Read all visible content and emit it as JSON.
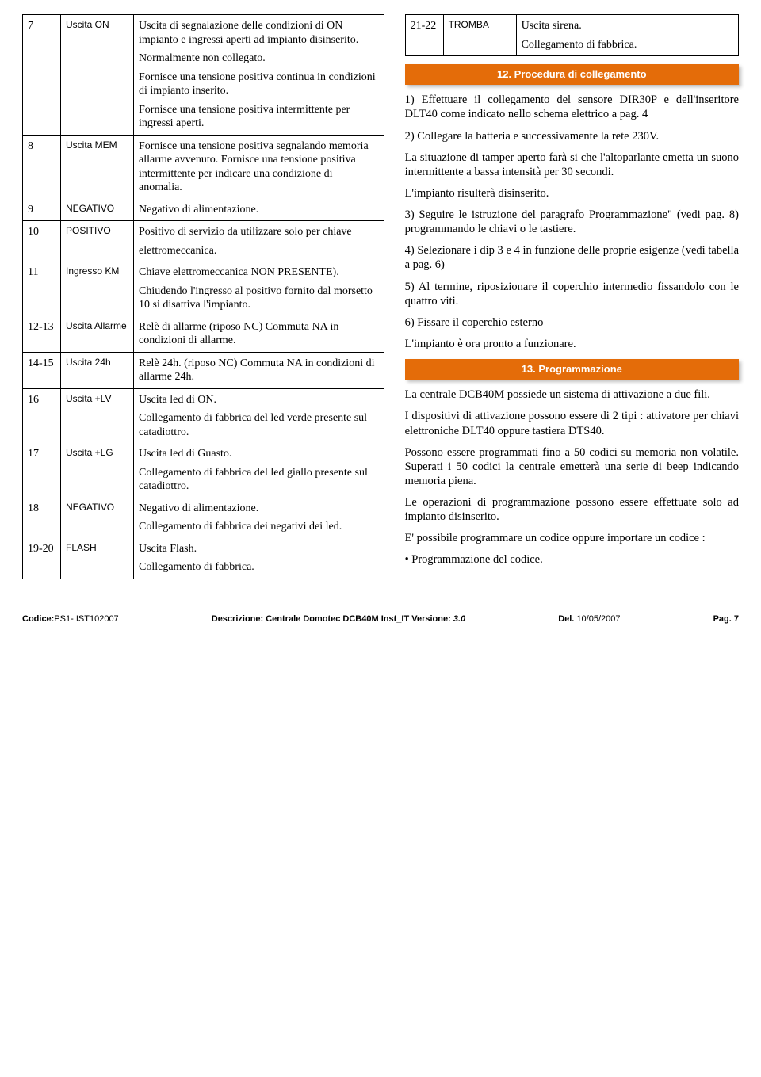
{
  "left_table": [
    {
      "n": "7",
      "name": "Uscita ON",
      "desc": [
        "Uscita di segnalazione delle condizioni di ON impianto e ingressi aperti ad impianto disinserito.",
        "Normalmente non collegato.",
        "Fornisce una tensione positiva continua in condizioni di impianto inserito.",
        "Fornisce una tensione positiva intermittente per ingressi aperti."
      ]
    },
    {
      "n": "8",
      "name": "Uscita MEM",
      "desc": [
        "Fornisce una tensione positiva segnalando memoria allarme avvenuto. Fornisce una tensione positiva intermittente per indicare una condizione di anomalia."
      ],
      "merge_bottom": true
    },
    {
      "n": "9",
      "name": "NEGATIVO",
      "desc": [
        "Negativo di alimentazione."
      ],
      "merge_top": true
    },
    {
      "n": "10",
      "name": "POSITIVO",
      "desc": [
        "Positivo di servizio da utilizzare solo per chiave",
        "elettromeccanica."
      ],
      "merge_bottom": true
    },
    {
      "n": "11",
      "name": "Ingresso KM",
      "desc": [
        "Chiave elettromeccanica NON PRESENTE).",
        "Chiudendo l'ingresso al positivo fornito dal morsetto 10 si disattiva l'impianto."
      ],
      "merge_top": true,
      "merge_bottom": true
    },
    {
      "n": "12-13",
      "name": "Uscita Allarme",
      "desc": [
        "Relè di allarme (riposo NC) Commuta NA in condizioni di allarme."
      ],
      "merge_top": true
    },
    {
      "n": "14-15",
      "name": "Uscita 24h",
      "desc": [
        "Relè 24h. (riposo NC) Commuta NA in condizioni di allarme 24h."
      ]
    },
    {
      "n": "16",
      "name": "Uscita +LV",
      "desc": [
        "Uscita led di ON.",
        "Collegamento di fabbrica del led verde presente sul catadiottro."
      ],
      "merge_bottom": true
    },
    {
      "n": "17",
      "name": "Uscita +LG",
      "desc": [
        "Uscita led di Guasto.",
        "Collegamento di fabbrica del led giallo presente sul catadiottro."
      ],
      "merge_top": true,
      "merge_bottom": true
    },
    {
      "n": "18",
      "name": "NEGATIVO",
      "desc": [
        "Negativo di alimentazione.",
        "Collegamento di fabbrica dei negativi dei led."
      ],
      "merge_top": true,
      "merge_bottom": true
    },
    {
      "n": "19-20",
      "name": "FLASH",
      "desc": [
        "Uscita Flash.",
        "Collegamento di fabbrica."
      ],
      "merge_top": true
    }
  ],
  "right_table": {
    "n": "21-22",
    "name": "TROMBA",
    "desc": [
      "Uscita sirena.",
      "Collegamento di fabbrica."
    ]
  },
  "section12": {
    "title": "12. Procedura di collegamento",
    "paras": [
      "1) Effettuare il collegamento del sensore DIR30P e dell'inseritore DLT40 come indicato nello schema elettrico a pag. 4",
      "2) Collegare la batteria e successivamente la rete 230V.",
      "La situazione di tamper aperto farà si che l'altoparlante emetta un suono intermittente a bassa intensità per 30 secondi.",
      "L'impianto risulterà disinserito.",
      "3) Seguire le istruzione del paragrafo Programmazione\" (vedi pag. 8) programmando le chiavi o le tastiere.",
      "4) Selezionare i  dip 3 e 4 in funzione delle proprie esigenze (vedi tabella a pag. 6)",
      "5) Al termine, riposizionare il coperchio intermedio fissandolo con le quattro viti.",
      "6) Fissare il coperchio esterno",
      "L'impianto è ora pronto a funzionare."
    ]
  },
  "section13": {
    "title": "13. Programmazione",
    "paras": [
      "La centrale DCB40M possiede un sistema di attivazione a due fili.",
      "I dispositivi di attivazione possono essere di 2 tipi : attivatore per chiavi elettroniche DLT40 oppure tastiera DTS40.",
      "Possono essere programmati fino a 50 codici su memoria non volatile. Superati i 50 codici la centrale emetterà una serie di beep indicando memoria piena.",
      "Le operazioni di programmazione possono essere effettuate solo ad impianto disinserito.",
      "E' possibile programmare un codice oppure importare un codice :",
      "• Programmazione del codice."
    ]
  },
  "footer": {
    "code_label": "Codice:",
    "code_value": "PS1- IST102007",
    "desc_label": "Descrizione:",
    "desc_value": "Centrale Domotec DCB40M Inst_IT",
    "ver_label": "Versione:",
    "ver_value": "3.0",
    "del_label": "Del.",
    "del_value": "10/05/2007",
    "page_label": "Pag.",
    "page_value": "7"
  },
  "colors": {
    "accent": "#e46c09",
    "text": "#000000",
    "bg": "#ffffff"
  }
}
